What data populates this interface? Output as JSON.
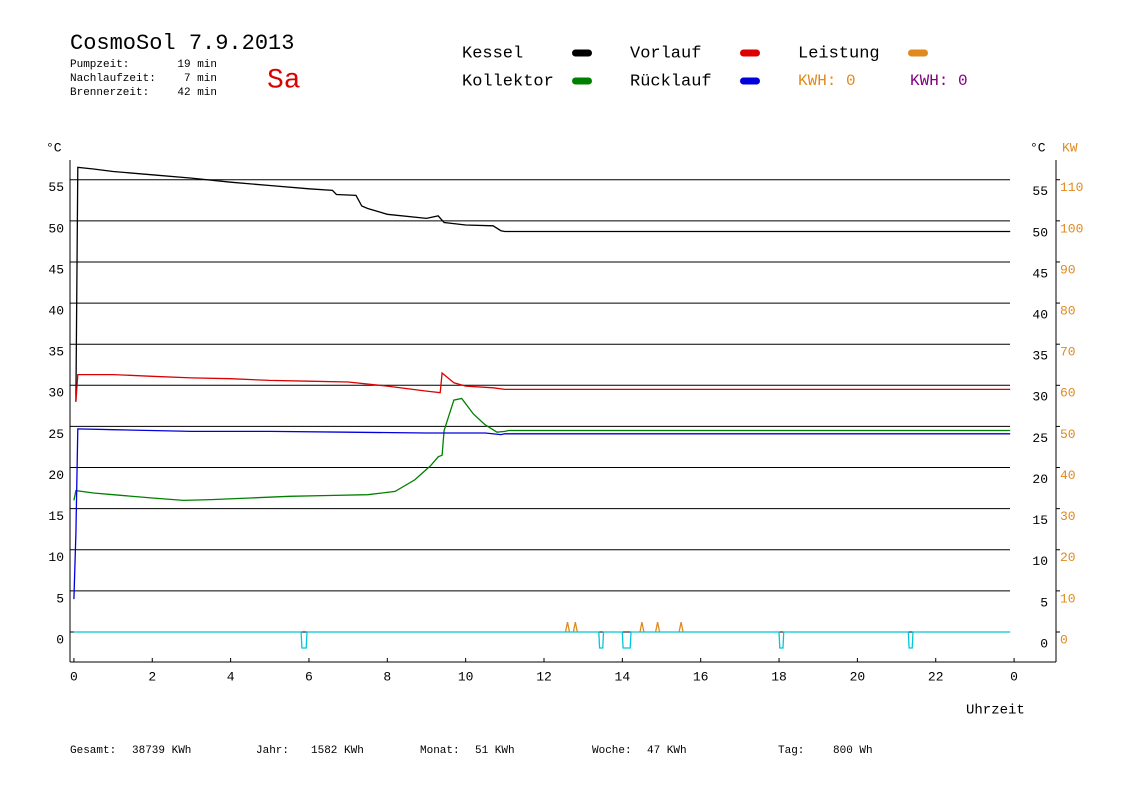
{
  "chart_data": {
    "type": "line",
    "title": "CosmoSol 7.9.2013",
    "day": "Sa",
    "info": [
      {
        "label": "Pumpzeit:",
        "value": "19 min"
      },
      {
        "label": "Nachlaufzeit:",
        "value": "7 min"
      },
      {
        "label": "Brennerzeit:",
        "value": "42 min"
      }
    ],
    "kwh_labels": [
      {
        "text": "KWH: 0",
        "color": "#e08a1e"
      },
      {
        "text": "KWH: 0",
        "color": "#800080"
      }
    ],
    "totals": [
      {
        "label": "Gesamt:",
        "value": "38739 KWh"
      },
      {
        "label": "Jahr:",
        "value": "1582 KWh"
      },
      {
        "label": "Monat:",
        "value": "51 KWh"
      },
      {
        "label": "Woche:",
        "value": "47 KWh"
      },
      {
        "label": "Tag:",
        "value": "800 Wh"
      }
    ],
    "x_label": "Uhrzeit",
    "y_label": "°C",
    "y2_label": "KW",
    "xlim": [
      -0.1,
      25.07
    ],
    "xticks": [
      0,
      2,
      4,
      6,
      8,
      10,
      12,
      14,
      16,
      18,
      20,
      22,
      {
        "value": 24,
        "label": "0"
      }
    ],
    "ylim": [
      -3.65,
      57.4
    ],
    "yticks": [
      0,
      5,
      10,
      15,
      20,
      25,
      30,
      35,
      40,
      45,
      50,
      55
    ],
    "y2lim": [
      -7.3,
      114.8
    ],
    "y2ticks": [
      0,
      10,
      20,
      30,
      40,
      50,
      60,
      70,
      80,
      90,
      100,
      110
    ],
    "grid": true,
    "series": [
      {
        "name": "Kessel",
        "color": "#000000",
        "x": [
          0.05,
          0.1,
          0.5,
          1,
          2,
          3,
          4,
          5,
          6,
          6.6,
          6.7,
          7.2,
          7.35,
          7.5,
          8,
          9,
          9.3,
          9.45,
          10,
          10.7,
          10.9,
          11,
          23.9
        ],
        "values": [
          28,
          56.5,
          56.3,
          56,
          55.6,
          55.2,
          54.7,
          54.3,
          53.9,
          53.7,
          53.2,
          53.1,
          51.8,
          51.5,
          50.8,
          50.3,
          50.6,
          49.8,
          49.5,
          49.4,
          48.8,
          48.7,
          48.7
        ]
      },
      {
        "name": "Kollektor",
        "color": "#008000",
        "x": [
          0,
          0.05,
          0.5,
          1,
          2,
          2.8,
          3.5,
          4.5,
          5.5,
          6.5,
          7.5,
          8.2,
          8.7,
          9.1,
          9.3,
          9.4,
          9.45,
          9.7,
          9.9,
          10.2,
          10.5,
          10.8,
          11,
          11.1,
          23.9
        ],
        "values": [
          16,
          17.2,
          16.9,
          16.7,
          16.3,
          16.0,
          16.1,
          16.3,
          16.5,
          16.6,
          16.7,
          17.1,
          18.5,
          20.2,
          21.3,
          21.5,
          24.5,
          28.2,
          28.4,
          26.5,
          25.2,
          24.3,
          24.4,
          24.5,
          24.5
        ]
      },
      {
        "name": "Vorlauf",
        "color": "#dd0000",
        "x": [
          0.05,
          0.1,
          1,
          2,
          3,
          4,
          5,
          6,
          7,
          8,
          9,
          9.35,
          9.4,
          9.7,
          10,
          10.7,
          11,
          23.9
        ],
        "values": [
          28,
          31.3,
          31.3,
          31.1,
          30.9,
          30.8,
          30.6,
          30.5,
          30.4,
          29.9,
          29.3,
          29.1,
          31.5,
          30.3,
          29.9,
          29.7,
          29.5,
          29.5
        ]
      },
      {
        "name": "Rücklauf",
        "color": "#0000dd",
        "x": [
          0,
          0.05,
          0.1,
          1,
          3,
          5,
          7,
          9,
          10.5,
          10.9,
          11,
          23.9
        ],
        "values": [
          4,
          12,
          24.7,
          24.6,
          24.4,
          24.4,
          24.3,
          24.2,
          24.2,
          24.0,
          24.1,
          24.1
        ]
      },
      {
        "name": "Leistung",
        "color": "#e08a1e",
        "axis": "y2",
        "x": [
          12.55,
          12.6,
          12.65,
          null,
          12.75,
          12.8,
          12.85,
          null,
          14.45,
          14.5,
          14.55,
          null,
          14.85,
          14.9,
          14.95,
          null,
          15.45,
          15.5,
          15.55
        ],
        "values": [
          0,
          2.4,
          0,
          null,
          0,
          2.4,
          0,
          null,
          0,
          2.4,
          0,
          null,
          0,
          2.4,
          0,
          null,
          0,
          2.4,
          0
        ]
      },
      {
        "color": "#00c8d8",
        "x": [
          0,
          5.8,
          5.82,
          5.93,
          5.95,
          13.4,
          13.42,
          13.5,
          13.52,
          14.0,
          14.02,
          14.2,
          14.22,
          18.0,
          18.02,
          18.1,
          18.12,
          21.3,
          21.32,
          21.4,
          21.42,
          23.9
        ],
        "values": [
          0,
          0,
          -1.95,
          -1.95,
          0,
          0,
          -1.95,
          -1.95,
          0,
          0,
          -1.95,
          -1.95,
          0,
          0,
          -1.95,
          -1.95,
          0,
          0,
          -1.95,
          -1.95,
          0,
          0
        ]
      }
    ]
  }
}
